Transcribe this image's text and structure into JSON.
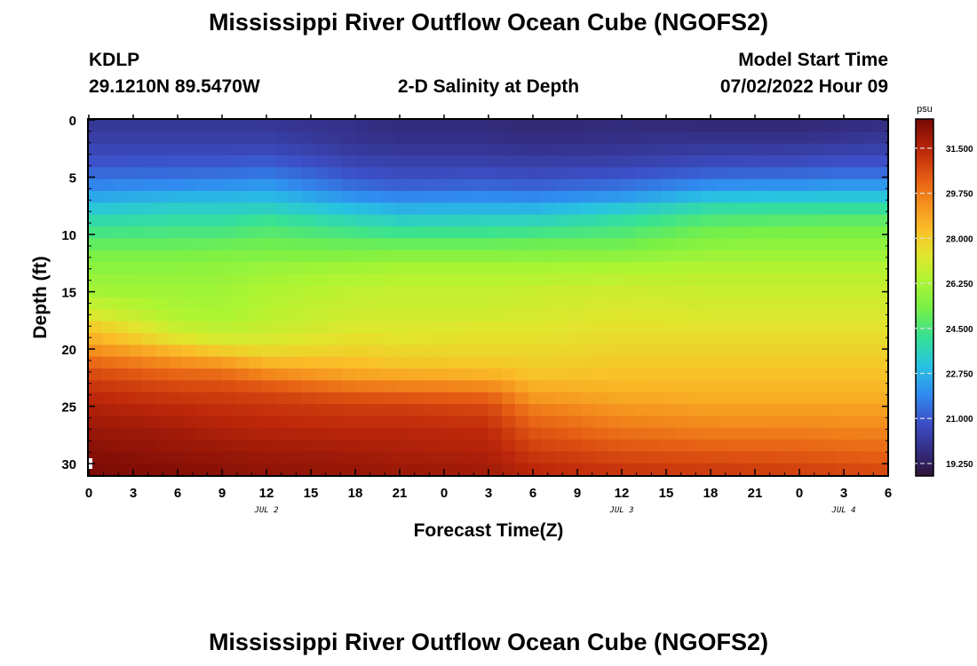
{
  "page": {
    "title": "Mississippi River Outflow Ocean Cube (NGOFS2)",
    "station": "KDLP",
    "coords": "29.1210N  89.5470W",
    "subtitle": "2-D Salinity at Depth",
    "model_start_label": "Model Start Time",
    "model_start_value": "07/02/2022 Hour 09",
    "footer_title": "Mississippi River Outflow Ocean Cube (NGOFS2)"
  },
  "chart_data": {
    "type": "heatmap",
    "title": "2-D Salinity at Depth",
    "xlabel": "Forecast Time(Z)",
    "ylabel": "Depth (ft)",
    "x_ticks": [
      "0",
      "3",
      "6",
      "9",
      "12",
      "15",
      "18",
      "21",
      "0",
      "3",
      "6",
      "9",
      "12",
      "15",
      "18",
      "21",
      "0",
      "3",
      "6"
    ],
    "x_range_hours": [
      0,
      54
    ],
    "date_labels": [
      {
        "label": "JUL 2",
        "hour": 12
      },
      {
        "label": "JUL 3",
        "hour": 36
      },
      {
        "label": "JUL 4",
        "hour": 51
      }
    ],
    "y_ticks": [
      0,
      5,
      10,
      15,
      20,
      25,
      30
    ],
    "ylim": [
      0,
      31
    ],
    "y_inverted": true,
    "colorbar": {
      "unit": "psu",
      "ticks": [
        "31.500",
        "29.750",
        "28.000",
        "26.250",
        "24.500",
        "22.750",
        "21.000",
        "19.250"
      ],
      "range": [
        18.8,
        32.6
      ]
    },
    "salinity_profiles": {
      "columns_hours": [
        0,
        6,
        9,
        12,
        18,
        21,
        27,
        30,
        36,
        42,
        48,
        51,
        54
      ],
      "depths_ft": [
        0,
        2,
        4,
        5,
        6,
        7,
        8,
        9,
        10,
        11,
        12,
        13,
        15,
        17,
        18,
        19,
        20,
        21,
        22,
        23,
        24,
        25,
        27,
        29,
        31
      ],
      "values_psu": [
        [
          20.0,
          20.0,
          20.0,
          20.0,
          19.8,
          19.6,
          19.6,
          19.5,
          19.6,
          19.5,
          19.5,
          19.6,
          19.7
        ],
        [
          20.4,
          20.4,
          20.4,
          20.4,
          20.0,
          19.9,
          19.9,
          19.8,
          19.9,
          20.0,
          20.0,
          20.1,
          20.2
        ],
        [
          21.0,
          21.1,
          21.1,
          21.2,
          20.6,
          20.5,
          20.5,
          20.4,
          20.5,
          20.8,
          20.9,
          21.0,
          21.0
        ],
        [
          21.5,
          21.5,
          21.6,
          21.8,
          21.0,
          20.8,
          20.9,
          20.8,
          21.0,
          21.4,
          21.5,
          21.6,
          21.6
        ],
        [
          22.0,
          22.2,
          22.3,
          22.4,
          21.5,
          21.3,
          21.4,
          21.3,
          21.6,
          22.3,
          22.4,
          22.5,
          22.5
        ],
        [
          22.7,
          23.0,
          23.0,
          23.1,
          22.3,
          22.1,
          22.2,
          22.1,
          22.5,
          23.3,
          23.4,
          23.4,
          23.4
        ],
        [
          23.4,
          23.6,
          23.6,
          23.7,
          23.2,
          22.9,
          23.0,
          23.0,
          23.5,
          24.2,
          24.3,
          24.3,
          24.3
        ],
        [
          24.0,
          24.1,
          24.1,
          24.4,
          23.9,
          23.7,
          23.8,
          23.8,
          24.2,
          24.8,
          24.9,
          25.0,
          25.0
        ],
        [
          24.5,
          24.6,
          24.6,
          24.8,
          24.5,
          24.4,
          24.4,
          24.5,
          24.7,
          25.3,
          25.4,
          25.4,
          25.4
        ],
        [
          25.0,
          25.0,
          25.1,
          25.2,
          25.1,
          25.1,
          25.1,
          25.2,
          25.2,
          25.7,
          25.8,
          25.8,
          25.8
        ],
        [
          25.4,
          25.4,
          25.5,
          25.5,
          25.6,
          25.7,
          25.7,
          25.7,
          25.8,
          26.1,
          26.1,
          26.1,
          26.1
        ],
        [
          25.7,
          25.7,
          25.8,
          26.0,
          26.2,
          26.3,
          26.3,
          26.3,
          26.4,
          26.5,
          26.5,
          26.5,
          26.5
        ],
        [
          26.2,
          26.1,
          26.1,
          26.4,
          26.7,
          26.8,
          26.8,
          26.9,
          27.0,
          26.9,
          26.9,
          26.9,
          26.9
        ],
        [
          27.2,
          26.4,
          26.3,
          26.6,
          27.0,
          27.0,
          27.0,
          27.1,
          27.3,
          27.2,
          27.2,
          27.2,
          27.2
        ],
        [
          28.0,
          26.8,
          26.6,
          26.8,
          27.2,
          27.2,
          27.3,
          27.3,
          27.5,
          27.4,
          27.4,
          27.4,
          27.4
        ],
        [
          28.6,
          27.3,
          27.0,
          27.1,
          27.5,
          27.4,
          27.5,
          27.5,
          27.6,
          27.6,
          27.6,
          27.6,
          27.6
        ],
        [
          29.3,
          28.3,
          27.8,
          27.6,
          27.8,
          27.7,
          27.7,
          27.7,
          27.8,
          27.8,
          27.8,
          27.8,
          27.8
        ],
        [
          30.0,
          29.2,
          28.9,
          28.3,
          28.2,
          28.0,
          28.0,
          27.9,
          28.0,
          28.0,
          28.0,
          28.0,
          28.0
        ],
        [
          30.6,
          30.0,
          29.9,
          29.3,
          28.7,
          28.6,
          28.4,
          28.1,
          28.2,
          28.2,
          28.2,
          28.2,
          28.2
        ],
        [
          31.0,
          30.6,
          30.5,
          30.2,
          29.5,
          29.4,
          29.2,
          28.5,
          28.4,
          28.4,
          28.4,
          28.4,
          28.4
        ],
        [
          31.3,
          31.0,
          30.9,
          30.8,
          30.4,
          30.3,
          30.1,
          29.0,
          28.7,
          28.6,
          28.6,
          28.6,
          28.6
        ],
        [
          31.6,
          31.3,
          31.2,
          31.1,
          30.9,
          30.9,
          30.7,
          29.6,
          29.1,
          28.9,
          28.9,
          28.9,
          28.9
        ],
        [
          32.0,
          31.8,
          31.6,
          31.5,
          31.4,
          31.4,
          31.3,
          30.4,
          29.8,
          29.6,
          29.6,
          29.5,
          29.5
        ],
        [
          32.3,
          32.1,
          32.0,
          31.9,
          31.8,
          31.7,
          31.6,
          31.0,
          30.6,
          30.4,
          30.3,
          30.2,
          30.1
        ],
        [
          32.5,
          32.4,
          32.3,
          32.2,
          32.1,
          32.0,
          31.9,
          31.5,
          31.2,
          31.1,
          31.0,
          30.9,
          30.8
        ]
      ]
    }
  }
}
